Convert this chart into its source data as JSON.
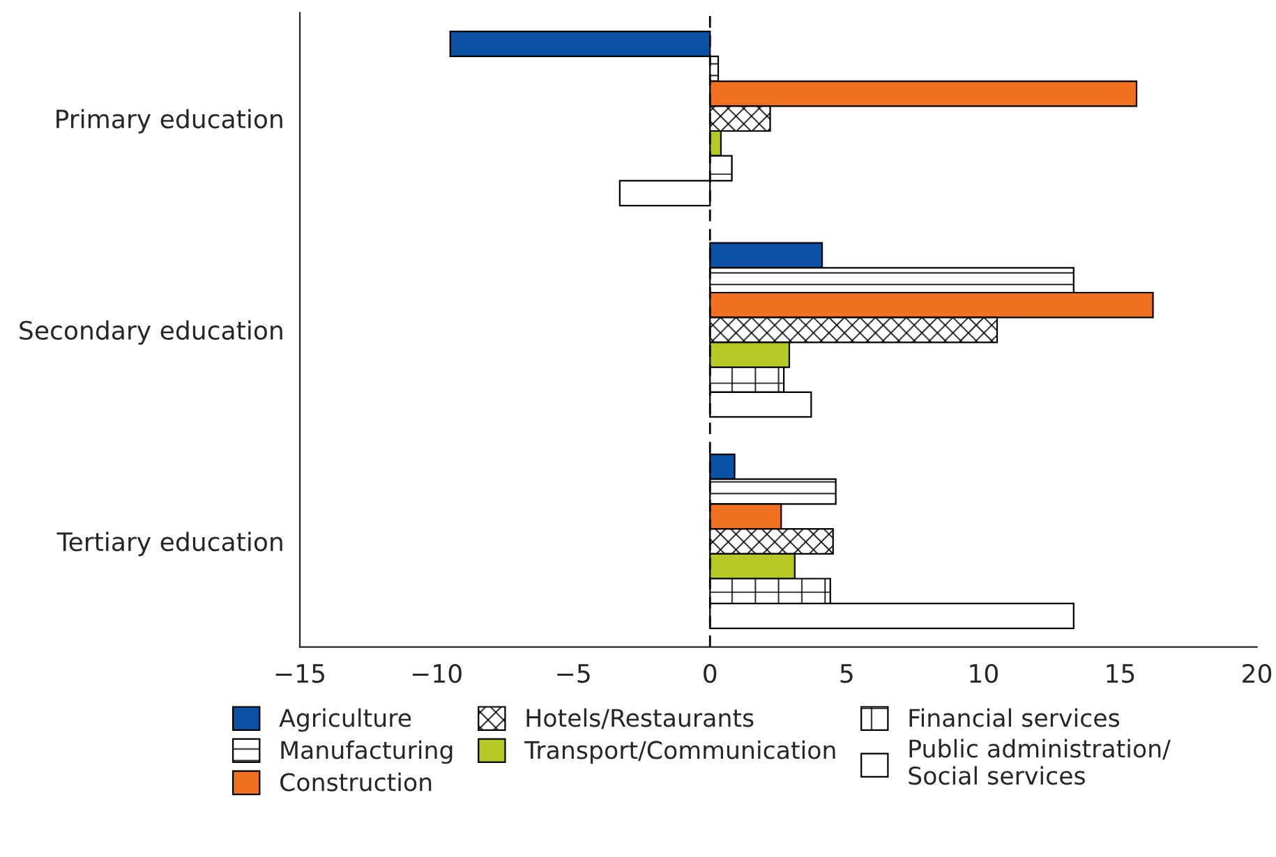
{
  "chart_data": {
    "type": "bar",
    "orientation": "horizontal",
    "categories": [
      "Primary education",
      "Secondary education",
      "Tertiary education"
    ],
    "series": [
      {
        "name": "Agriculture",
        "color": "#0a50a5",
        "values": [
          -9.5,
          4.1,
          0.9
        ]
      },
      {
        "name": "Manufacturing",
        "color": "#000000",
        "values": [
          0.3,
          13.3,
          4.6
        ]
      },
      {
        "name": "Construction",
        "color": "#f07122",
        "values": [
          15.6,
          16.2,
          2.6
        ]
      },
      {
        "name": "Hotels/Restaurants",
        "color": "#000000",
        "values": [
          2.2,
          10.5,
          4.5
        ]
      },
      {
        "name": "Transport/Communication",
        "color": "#b5c825",
        "values": [
          0.4,
          2.9,
          3.1
        ]
      },
      {
        "name": "Financial services",
        "color": "#000000",
        "values": [
          0.8,
          2.7,
          4.4
        ]
      },
      {
        "name": "Public administration/\nSocial services",
        "color": "#ffffff",
        "values": [
          -3.3,
          3.7,
          13.3
        ]
      }
    ],
    "xlim": [
      -15,
      20
    ],
    "xticks": [
      -15,
      -10,
      -5,
      0,
      5,
      10,
      15,
      20
    ],
    "ref_lines": [
      {
        "axis": "x",
        "value": 0,
        "line_style": "dashed",
        "color": "#000000"
      }
    ],
    "grid": false,
    "legend": "bottom"
  }
}
